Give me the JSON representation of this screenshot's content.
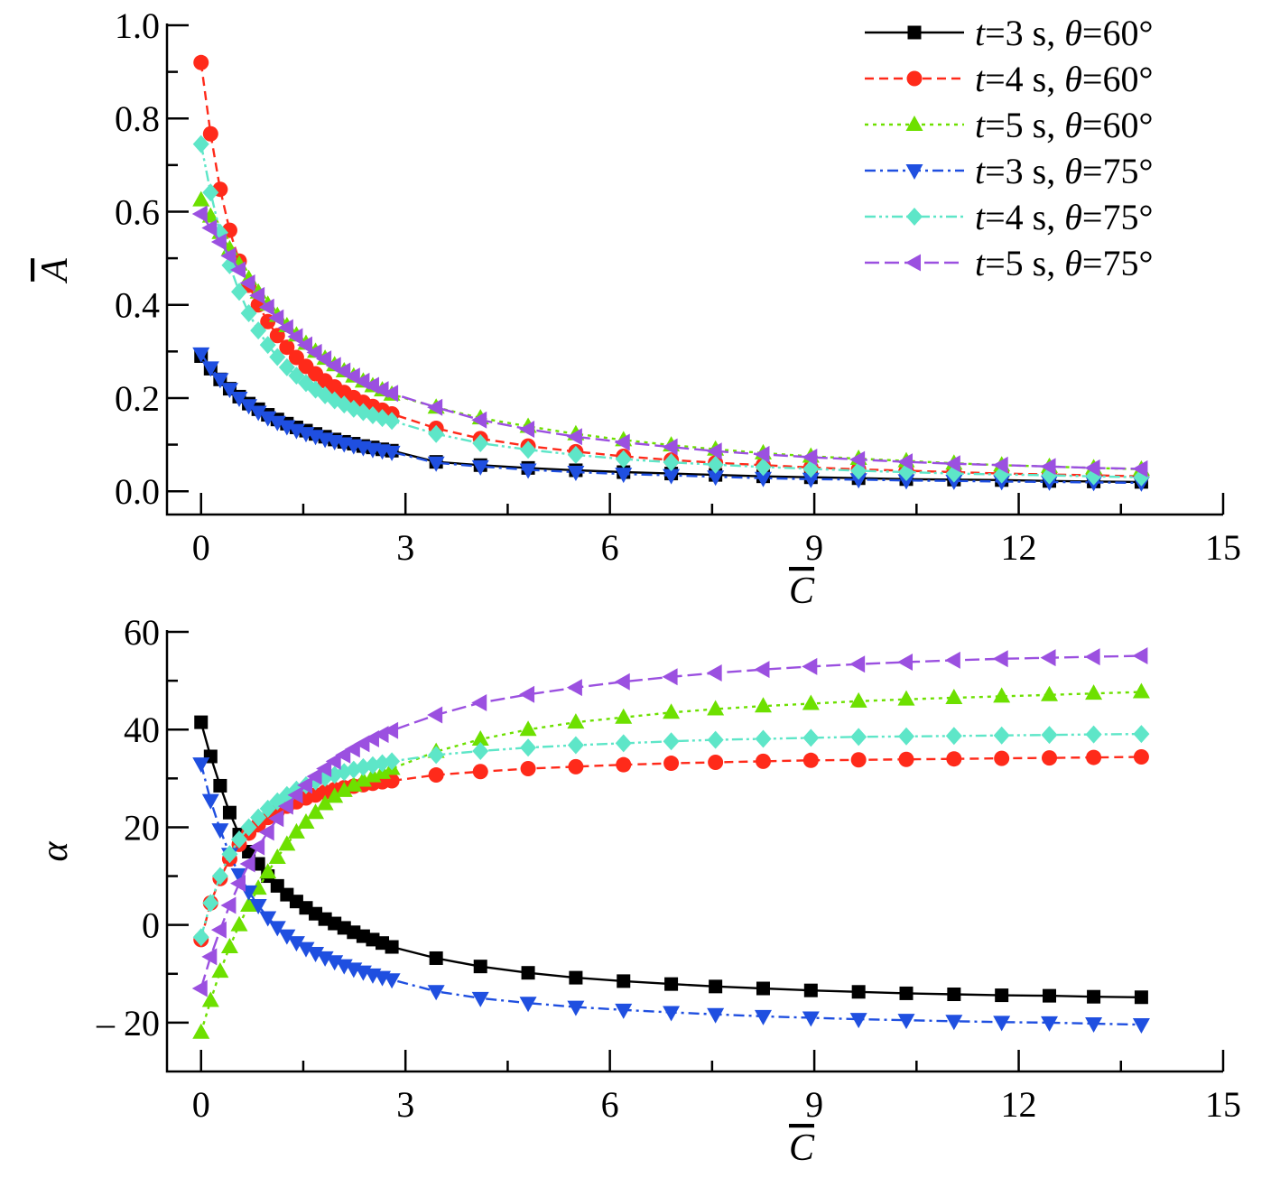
{
  "chart_data": [
    {
      "type": "line",
      "title": "",
      "xlabel": "C",
      "ylabel": "A",
      "xlim": [
        -0.5,
        15
      ],
      "ylim": [
        -0.05,
        1.0
      ],
      "xticks": [
        0,
        3,
        6,
        9,
        12,
        15
      ],
      "yticks": [
        0.0,
        0.2,
        0.4,
        0.6,
        0.8,
        1.0
      ],
      "ytick_labels": [
        "0.0",
        "0.2",
        "0.4",
        "0.6",
        "0.8",
        "1.0"
      ],
      "grid": false,
      "legend_position": "top-right",
      "x": [
        0,
        0.14,
        0.28,
        0.42,
        0.56,
        0.7,
        0.84,
        0.98,
        1.12,
        1.26,
        1.4,
        1.54,
        1.68,
        1.82,
        1.96,
        2.1,
        2.24,
        2.38,
        2.52,
        2.66,
        2.8,
        3.45,
        4.1,
        4.8,
        5.5,
        6.2,
        6.9,
        7.55,
        8.25,
        8.95,
        9.65,
        10.35,
        11.05,
        11.75,
        12.45,
        13.1,
        13.8
      ],
      "series": [
        {
          "name": "t=3 s, θ=60°",
          "values": [
            0.29,
            0.263,
            0.24,
            0.22,
            0.203,
            0.188,
            0.176,
            0.164,
            0.154,
            0.145,
            0.137,
            0.13,
            0.123,
            0.117,
            0.111,
            0.106,
            0.102,
            0.097,
            0.094,
            0.09,
            0.087,
            0.063,
            0.056,
            0.05,
            0.045,
            0.041,
            0.038,
            0.035,
            0.032,
            0.03,
            0.028,
            0.026,
            0.025,
            0.024,
            0.022,
            0.021,
            0.02
          ]
        },
        {
          "name": "t=4 s, θ=60°",
          "values": [
            0.92,
            0.767,
            0.648,
            0.56,
            0.494,
            0.442,
            0.4,
            0.364,
            0.334,
            0.309,
            0.287,
            0.268,
            0.252,
            0.237,
            0.224,
            0.212,
            0.201,
            0.191,
            0.182,
            0.174,
            0.166,
            0.135,
            0.113,
            0.097,
            0.085,
            0.075,
            0.067,
            0.061,
            0.056,
            0.051,
            0.047,
            0.044,
            0.041,
            0.038,
            0.036,
            0.034,
            0.032
          ]
        },
        {
          "name": "t=5 s, θ=60°",
          "values": [
            0.625,
            0.59,
            0.555,
            0.52,
            0.487,
            0.456,
            0.427,
            0.401,
            0.377,
            0.355,
            0.335,
            0.317,
            0.3,
            0.285,
            0.271,
            0.258,
            0.247,
            0.236,
            0.226,
            0.217,
            0.208,
            0.18,
            0.157,
            0.139,
            0.123,
            0.11,
            0.099,
            0.09,
            0.082,
            0.075,
            0.07,
            0.065,
            0.06,
            0.056,
            0.053,
            0.05,
            0.047
          ]
        },
        {
          "name": "t=3 s, θ=75°",
          "values": [
            0.295,
            0.265,
            0.24,
            0.219,
            0.2,
            0.184,
            0.17,
            0.158,
            0.148,
            0.139,
            0.131,
            0.124,
            0.118,
            0.112,
            0.107,
            0.102,
            0.098,
            0.094,
            0.09,
            0.087,
            0.084,
            0.061,
            0.053,
            0.046,
            0.041,
            0.037,
            0.034,
            0.031,
            0.028,
            0.026,
            0.025,
            0.023,
            0.022,
            0.021,
            0.02,
            0.019,
            0.018
          ]
        },
        {
          "name": "t=4 s, θ=75°",
          "values": [
            0.745,
            0.641,
            0.555,
            0.485,
            0.428,
            0.382,
            0.345,
            0.314,
            0.288,
            0.266,
            0.248,
            0.232,
            0.218,
            0.206,
            0.195,
            0.186,
            0.177,
            0.17,
            0.163,
            0.157,
            0.151,
            0.123,
            0.103,
            0.089,
            0.078,
            0.069,
            0.062,
            0.057,
            0.052,
            0.048,
            0.044,
            0.041,
            0.038,
            0.036,
            0.034,
            0.032,
            0.03
          ]
        },
        {
          "name": "t=5 s, θ=75°",
          "values": [
            0.595,
            0.565,
            0.535,
            0.505,
            0.475,
            0.447,
            0.42,
            0.395,
            0.372,
            0.351,
            0.332,
            0.314,
            0.298,
            0.284,
            0.27,
            0.258,
            0.247,
            0.236,
            0.227,
            0.218,
            0.21,
            0.18,
            0.153,
            0.133,
            0.117,
            0.105,
            0.095,
            0.086,
            0.079,
            0.073,
            0.068,
            0.063,
            0.059,
            0.056,
            0.053,
            0.05,
            0.048
          ]
        }
      ]
    },
    {
      "type": "line",
      "title": "",
      "xlabel": "C",
      "ylabel": "α",
      "xlim": [
        -0.5,
        15
      ],
      "ylim": [
        -30,
        60
      ],
      "xticks": [
        0,
        3,
        6,
        9,
        12,
        15
      ],
      "yticks": [
        -20,
        0,
        20,
        40,
        60
      ],
      "ytick_labels": [
        "– 20",
        "0",
        "20",
        "40",
        "60"
      ],
      "grid": false,
      "x": [
        0,
        0.14,
        0.28,
        0.42,
        0.56,
        0.7,
        0.84,
        0.98,
        1.12,
        1.26,
        1.4,
        1.54,
        1.68,
        1.82,
        1.96,
        2.1,
        2.24,
        2.38,
        2.52,
        2.66,
        2.8,
        3.45,
        4.1,
        4.8,
        5.5,
        6.2,
        6.9,
        7.55,
        8.25,
        8.95,
        9.65,
        10.35,
        11.05,
        11.75,
        12.45,
        13.1,
        13.8
      ],
      "series": [
        {
          "name": "t=3 s, θ=60°",
          "values": [
            41.5,
            34.5,
            28.5,
            23.0,
            18.5,
            15.0,
            12.5,
            10.0,
            8.0,
            6.2,
            4.8,
            3.5,
            2.3,
            1.2,
            0.3,
            -0.6,
            -1.5,
            -2.3,
            -3.0,
            -3.7,
            -4.5,
            -6.8,
            -8.5,
            -9.8,
            -10.8,
            -11.5,
            -12.1,
            -12.6,
            -13.0,
            -13.4,
            -13.7,
            -14.0,
            -14.2,
            -14.4,
            -14.5,
            -14.7,
            -14.8
          ]
        },
        {
          "name": "t=4 s, θ=60°",
          "values": [
            -3.0,
            4.5,
            9.5,
            13.5,
            16.5,
            18.8,
            20.5,
            22.0,
            23.3,
            24.3,
            25.2,
            26.0,
            26.6,
            27.2,
            27.7,
            28.1,
            28.4,
            28.7,
            29.0,
            29.3,
            29.5,
            30.7,
            31.4,
            32.0,
            32.4,
            32.8,
            33.1,
            33.3,
            33.5,
            33.7,
            33.8,
            33.9,
            34.0,
            34.1,
            34.2,
            34.3,
            34.4
          ]
        },
        {
          "name": "t=5 s, θ=60°",
          "values": [
            -22.0,
            -15.5,
            -9.5,
            -4.5,
            0.0,
            4.0,
            7.5,
            10.8,
            13.8,
            16.5,
            19.0,
            21.0,
            23.0,
            24.8,
            26.3,
            27.5,
            28.6,
            29.6,
            30.5,
            31.2,
            32.0,
            35.5,
            38.0,
            40.0,
            41.5,
            42.5,
            43.5,
            44.2,
            44.8,
            45.3,
            45.8,
            46.2,
            46.5,
            46.8,
            47.1,
            47.4,
            47.7
          ]
        },
        {
          "name": "t=3 s, θ=75°",
          "values": [
            33.0,
            25.5,
            19.5,
            14.5,
            10.3,
            6.8,
            4.0,
            1.5,
            -0.5,
            -2.2,
            -3.6,
            -4.8,
            -5.8,
            -6.7,
            -7.5,
            -8.3,
            -9.0,
            -9.6,
            -10.2,
            -10.7,
            -11.2,
            -13.6,
            -15.0,
            -16.0,
            -16.8,
            -17.4,
            -17.9,
            -18.3,
            -18.7,
            -19.0,
            -19.3,
            -19.5,
            -19.7,
            -19.9,
            -20.0,
            -20.2,
            -20.4
          ]
        },
        {
          "name": "t=4 s, θ=75°",
          "values": [
            -2.5,
            4.5,
            10.0,
            14.5,
            17.5,
            20.0,
            22.0,
            23.8,
            25.3,
            26.6,
            27.7,
            28.6,
            29.4,
            30.1,
            30.7,
            31.3,
            31.8,
            32.3,
            32.7,
            33.1,
            33.5,
            34.8,
            35.6,
            36.3,
            36.8,
            37.2,
            37.6,
            37.9,
            38.1,
            38.3,
            38.5,
            38.6,
            38.7,
            38.8,
            38.9,
            39.0,
            39.1
          ]
        },
        {
          "name": "t=5 s, θ=75°",
          "values": [
            -13.0,
            -6.5,
            -1.0,
            4.0,
            8.5,
            12.5,
            16.0,
            19.0,
            21.8,
            24.3,
            26.6,
            28.6,
            30.4,
            32.0,
            33.5,
            34.8,
            36.0,
            37.1,
            38.1,
            39.0,
            39.8,
            43.0,
            45.5,
            47.2,
            48.6,
            49.8,
            50.8,
            51.6,
            52.3,
            52.9,
            53.4,
            53.8,
            54.2,
            54.5,
            54.7,
            54.9,
            55.1
          ]
        }
      ]
    }
  ],
  "legend": {
    "entries": [
      {
        "pre": "t",
        "mid": "=3 s, ",
        "sym": "θ",
        "post": "=60°",
        "color": "#000000",
        "marker": "square",
        "dash": ""
      },
      {
        "pre": "t",
        "mid": "=4 s, ",
        "sym": "θ",
        "post": "=60°",
        "color": "#ff2a1a",
        "marker": "circle",
        "dash": "10 6"
      },
      {
        "pre": "t",
        "mid": "=5 s, ",
        "sym": "θ",
        "post": "=60°",
        "color": "#6de000",
        "marker": "triangle-up",
        "dash": "4 5"
      },
      {
        "pre": "t",
        "mid": "=3 s, ",
        "sym": "θ",
        "post": "=75°",
        "color": "#1f4fe0",
        "marker": "triangle-down",
        "dash": "12 5 3 5"
      },
      {
        "pre": "t",
        "mid": "=4 s, ",
        "sym": "θ",
        "post": "=75°",
        "color": "#5ee6c8",
        "marker": "diamond",
        "dash": "12 4 3 4 3 4"
      },
      {
        "pre": "t",
        "mid": "=5 s, ",
        "sym": "θ",
        "post": "=75°",
        "color": "#9b50e0",
        "marker": "triangle-left",
        "dash": "16 6"
      }
    ]
  }
}
